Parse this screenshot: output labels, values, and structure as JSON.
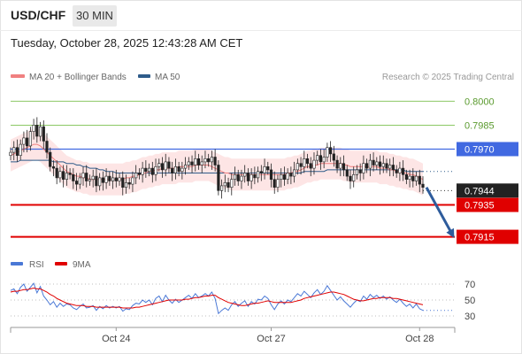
{
  "header": {
    "symbol": "USD/CHF",
    "timeframe": "30 MIN",
    "datetime": "Tuesday, October 28, 2025 12:43:28 AM CET"
  },
  "legend": {
    "ma20_label": "MA 20 + Bollinger Bands",
    "ma50_label": "MA 50",
    "attribution": "Research © 2025 Trading Central"
  },
  "colors": {
    "ma20": "#f08080",
    "ma50": "#2e5c8a",
    "pivot": "#4169e1",
    "support": "#e00000",
    "resistance": "#8cc865",
    "up_candle": "#ffffff",
    "down_candle": "#222222",
    "band_fill": "#fde0e0",
    "arrow": "#2e5c9c",
    "rsi": "#4a78d6",
    "rsi_ma": "#e00000"
  },
  "chart_data": [
    {
      "type": "candlestick",
      "title": "USD/CHF",
      "ylim": [
        0.7907,
        0.8008
      ],
      "levels": [
        {
          "value": 0.8,
          "label": "0.8000",
          "kind": "resistance"
        },
        {
          "value": 0.7985,
          "label": "0.7985",
          "kind": "resistance"
        },
        {
          "value": 0.797,
          "label": "0.7970",
          "kind": "pivot"
        },
        {
          "value": 0.7944,
          "label": "0.7944",
          "kind": "last-price"
        },
        {
          "value": 0.7935,
          "label": "0.7935",
          "kind": "support"
        },
        {
          "value": 0.7915,
          "label": "0.7915",
          "kind": "support"
        }
      ],
      "x_ticks": [
        {
          "index": 32,
          "label": "Oct 24"
        },
        {
          "index": 79,
          "label": "Oct 27"
        },
        {
          "index": 124,
          "label": "Oct 28"
        }
      ],
      "closes": [
        0.7968,
        0.7971,
        0.7966,
        0.7973,
        0.7977,
        0.7972,
        0.7981,
        0.7985,
        0.7978,
        0.7984,
        0.7975,
        0.7968,
        0.7959,
        0.7958,
        0.7952,
        0.7956,
        0.7951,
        0.7955,
        0.7954,
        0.795,
        0.7948,
        0.7952,
        0.7955,
        0.795,
        0.7951,
        0.7953,
        0.7947,
        0.7952,
        0.7949,
        0.7953,
        0.795,
        0.7952,
        0.795,
        0.7952,
        0.7946,
        0.7949,
        0.7948,
        0.7952,
        0.7955,
        0.7954,
        0.7958,
        0.7956,
        0.7958,
        0.7954,
        0.7959,
        0.7961,
        0.7957,
        0.7962,
        0.7958,
        0.7955,
        0.7959,
        0.7956,
        0.7958,
        0.796,
        0.7962,
        0.796,
        0.7964,
        0.796,
        0.7962,
        0.7964,
        0.7962,
        0.7965,
        0.796,
        0.7944,
        0.7947,
        0.7949,
        0.7946,
        0.7951,
        0.7954,
        0.795,
        0.7953,
        0.7955,
        0.795,
        0.7954,
        0.7952,
        0.7956,
        0.7955,
        0.7959,
        0.7957,
        0.7951,
        0.7946,
        0.7951,
        0.7954,
        0.7951,
        0.7955,
        0.7953,
        0.7957,
        0.7961,
        0.7959,
        0.7964,
        0.7961,
        0.7958,
        0.7963,
        0.7966,
        0.7962,
        0.7965,
        0.7971,
        0.7967,
        0.7963,
        0.7958,
        0.7961,
        0.7957,
        0.7953,
        0.795,
        0.7954,
        0.7957,
        0.7955,
        0.7961,
        0.7958,
        0.7963,
        0.796,
        0.7962,
        0.7959,
        0.7961,
        0.7958,
        0.796,
        0.7957,
        0.7955,
        0.7958,
        0.7954,
        0.7951,
        0.7953,
        0.795,
        0.7953,
        0.7948,
        0.7946
      ],
      "ma20": [
        0.7966,
        0.7967,
        0.7968,
        0.7969,
        0.797,
        0.7971,
        0.7972,
        0.7973,
        0.7973,
        0.7972,
        0.797,
        0.7968,
        0.7966,
        0.7964,
        0.7962,
        0.796,
        0.7958,
        0.7956,
        0.7955,
        0.7954,
        0.7953,
        0.7953,
        0.7952,
        0.7952,
        0.7951,
        0.7951,
        0.7951,
        0.7951,
        0.7951,
        0.7951,
        0.7951,
        0.7951,
        0.7951,
        0.7951,
        0.7951,
        0.7952,
        0.7952,
        0.7953,
        0.7953,
        0.7954,
        0.7955,
        0.7955,
        0.7956,
        0.7956,
        0.7957,
        0.7957,
        0.7958,
        0.7958,
        0.7958,
        0.7958,
        0.7958,
        0.7959,
        0.7959,
        0.7959,
        0.7959,
        0.7959,
        0.796,
        0.796,
        0.796,
        0.796,
        0.796,
        0.7959,
        0.7958,
        0.7957,
        0.7956,
        0.7955,
        0.7955,
        0.7954,
        0.7954,
        0.7954,
        0.7954,
        0.7954,
        0.7954,
        0.7954,
        0.7954,
        0.7954,
        0.7954,
        0.7954,
        0.7954,
        0.7954,
        0.7954,
        0.7954,
        0.7954,
        0.7954,
        0.7955,
        0.7955,
        0.7956,
        0.7956,
        0.7957,
        0.7958,
        0.7959,
        0.7959,
        0.796,
        0.796,
        0.7961,
        0.7961,
        0.7961,
        0.7961,
        0.7961,
        0.7961,
        0.7961,
        0.796,
        0.796,
        0.7959,
        0.7959,
        0.7959,
        0.7959,
        0.7959,
        0.7959,
        0.7959,
        0.7959,
        0.7959,
        0.7958,
        0.7958,
        0.7958,
        0.7957,
        0.7957,
        0.7956,
        0.7956,
        0.7955,
        0.7955,
        0.7954,
        0.7954,
        0.7953,
        0.7952,
        0.7951
      ],
      "ma50": [
        0.7962,
        0.7962,
        0.7962,
        0.7963,
        0.7963,
        0.7963,
        0.7963,
        0.7963,
        0.7963,
        0.7963,
        0.7963,
        0.7963,
        0.7963,
        0.7962,
        0.7962,
        0.7962,
        0.7962,
        0.7961,
        0.7961,
        0.7961,
        0.796,
        0.796,
        0.7959,
        0.7959,
        0.7958,
        0.7958,
        0.7958,
        0.7957,
        0.7957,
        0.7956,
        0.7956,
        0.7956,
        0.7955,
        0.7955,
        0.7955,
        0.7955,
        0.7955,
        0.7955,
        0.7955,
        0.7955,
        0.7955,
        0.7955,
        0.7955,
        0.7955,
        0.7955,
        0.7955,
        0.7955,
        0.7955,
        0.7955,
        0.7955,
        0.7955,
        0.7955,
        0.7955,
        0.7955,
        0.7955,
        0.7955,
        0.7955,
        0.7955,
        0.7955,
        0.7955,
        0.7955,
        0.7955,
        0.7955,
        0.7955,
        0.7955,
        0.7955,
        0.7955,
        0.7955,
        0.7955,
        0.7955,
        0.7955,
        0.7955,
        0.7955,
        0.7955,
        0.7955,
        0.7955,
        0.7955,
        0.7955,
        0.7955,
        0.7955,
        0.7955,
        0.7955,
        0.7955,
        0.7955,
        0.7955,
        0.7955,
        0.7955,
        0.7955,
        0.7955,
        0.7956,
        0.7956,
        0.7956,
        0.7956,
        0.7956,
        0.7956,
        0.7956,
        0.7957,
        0.7957,
        0.7957,
        0.7957,
        0.7957,
        0.7957,
        0.7957,
        0.7957,
        0.7957,
        0.7957,
        0.7957,
        0.7957,
        0.7957,
        0.7957,
        0.7957,
        0.7957,
        0.7957,
        0.7957,
        0.7957,
        0.7957,
        0.7957,
        0.7957,
        0.7957,
        0.7957,
        0.7956,
        0.7956,
        0.7956,
        0.7956,
        0.7956,
        0.7956
      ],
      "projection": {
        "from": 0.7946,
        "to": 0.7915
      }
    },
    {
      "type": "line",
      "title": "",
      "series": [
        {
          "name": "RSI",
          "values": [
            62,
            64,
            58,
            66,
            70,
            61,
            66,
            71,
            59,
            67,
            55,
            50,
            44,
            48,
            41,
            46,
            42,
            45,
            44,
            40,
            38,
            42,
            45,
            40,
            41,
            43,
            37,
            42,
            39,
            43,
            40,
            42,
            40,
            42,
            36,
            39,
            38,
            43,
            46,
            45,
            50,
            47,
            50,
            44,
            52,
            55,
            48,
            56,
            50,
            46,
            51,
            47,
            50,
            53,
            56,
            52,
            58,
            53,
            55,
            58,
            55,
            60,
            52,
            33,
            37,
            40,
            37,
            44,
            48,
            42,
            46,
            49,
            42,
            48,
            45,
            51,
            50,
            55,
            52,
            44,
            38,
            45,
            49,
            45,
            50,
            48,
            53,
            58,
            55,
            61,
            57,
            53,
            59,
            63,
            57,
            61,
            68,
            62,
            56,
            50,
            54,
            49,
            45,
            41,
            46,
            50,
            48,
            55,
            51,
            57,
            53,
            56,
            52,
            55,
            51,
            54,
            50,
            47,
            51,
            46,
            42,
            45,
            40,
            45,
            39,
            37
          ]
        },
        {
          "name": "9MA",
          "values": [
            60,
            61,
            61,
            62,
            63,
            63,
            64,
            65,
            64,
            64,
            62,
            60,
            57,
            55,
            52,
            50,
            48,
            46,
            45,
            44,
            43,
            43,
            43,
            42,
            42,
            42,
            41,
            41,
            41,
            41,
            41,
            41,
            41,
            41,
            40,
            40,
            40,
            40,
            41,
            41,
            42,
            43,
            44,
            45,
            46,
            47,
            48,
            49,
            50,
            50,
            50,
            50,
            50,
            51,
            51,
            52,
            53,
            53,
            54,
            55,
            55,
            56,
            56,
            53,
            51,
            49,
            47,
            46,
            45,
            44,
            43,
            43,
            44,
            45,
            46,
            46,
            47,
            48,
            49,
            48,
            47,
            47,
            47,
            47,
            47,
            47,
            48,
            49,
            50,
            52,
            53,
            54,
            55,
            56,
            57,
            58,
            59,
            60,
            60,
            59,
            58,
            57,
            55,
            53,
            51,
            50,
            49,
            49,
            50,
            51,
            52,
            52,
            53,
            53,
            53,
            53,
            52,
            52,
            51,
            50,
            49,
            48,
            47,
            46,
            45,
            44
          ]
        }
      ],
      "ylim": [
        20,
        80
      ],
      "y_ticks": [
        {
          "value": 70,
          "label": "70"
        },
        {
          "value": 50,
          "label": "50"
        },
        {
          "value": 30,
          "label": "30"
        }
      ]
    }
  ]
}
